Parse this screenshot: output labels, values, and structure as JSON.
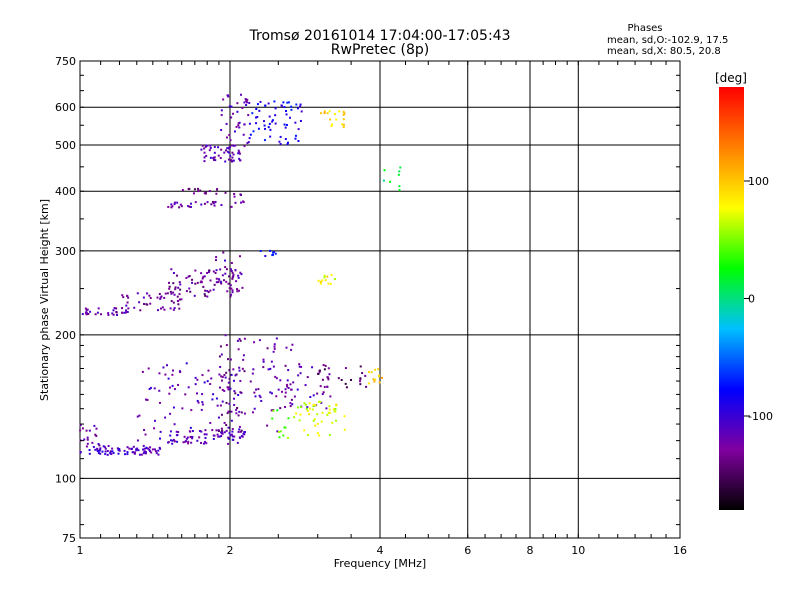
{
  "chart_data": {
    "type": "scatter",
    "title": "Tromsø 20161014 17:04:00-17:05:43",
    "subtitle": "RwPretec (8p)",
    "xlabel": "Frequency [MHz]",
    "ylabel": "Stationary phase Virtual Height [km]",
    "x_scale": "log",
    "y_scale": "log",
    "xlim": [
      1,
      16
    ],
    "ylim": [
      75,
      750
    ],
    "x_ticks": [
      1,
      2,
      4,
      6,
      8,
      10,
      16
    ],
    "y_ticks": [
      75,
      100,
      200,
      300,
      400,
      500,
      600,
      750
    ],
    "x_gridlines": [
      2,
      4,
      6,
      8,
      10
    ],
    "y_gridlines": [
      100,
      200,
      300,
      400,
      500,
      600
    ],
    "legend": {
      "title": "Phases",
      "line1": "mean, sd,O:-102.9, 17.5",
      "line2": "mean, sd,X:  80.5, 20.8"
    },
    "colorbar": {
      "label": "[deg]",
      "ticks": [
        100,
        0,
        -100
      ],
      "range": [
        -180,
        180
      ],
      "colors": [
        "#000000",
        "#8000a0",
        "#0000ff",
        "#00c0ff",
        "#00ff00",
        "#ffff00",
        "#ff8000",
        "#ff0000"
      ]
    },
    "series": [
      {
        "clusters": [
          {
            "x": [
              1.0,
              1.45
            ],
            "y": [
              112,
              117
            ],
            "phase": -110,
            "n": 80
          },
          {
            "x": [
              1.5,
              2.15
            ],
            "y": [
              118,
              127
            ],
            "phase": -115,
            "n": 70
          },
          {
            "x": [
              1.0,
              1.1
            ],
            "y": [
              115,
              130
            ],
            "phase": -120,
            "n": 18
          },
          {
            "x": [
              1.3,
              2.1
            ],
            "y": [
              120,
              175
            ],
            "phase": -115,
            "n": 90
          },
          {
            "x": [
              1.9,
              2.15
            ],
            "y": [
              125,
              200
            ],
            "phase": -130,
            "n": 60
          },
          {
            "x": [
              2.2,
              2.7
            ],
            "y": [
              125,
              200
            ],
            "phase": -120,
            "n": 55
          },
          {
            "x": [
              2.6,
              3.2
            ],
            "y": [
              140,
              175
            ],
            "phase": -120,
            "n": 35
          },
          {
            "x": [
              3.0,
              3.8
            ],
            "y": [
              155,
              172
            ],
            "phase": -140,
            "n": 25
          },
          {
            "x": [
              2.4,
              2.7
            ],
            "y": [
              120,
              140
            ],
            "phase": 40,
            "n": 12
          },
          {
            "x": [
              2.7,
              3.4
            ],
            "y": [
              123,
              145
            ],
            "phase": 70,
            "n": 45
          },
          {
            "x": [
              3.8,
              4.1
            ],
            "y": [
              158,
              170
            ],
            "phase": 100,
            "n": 12
          },
          {
            "x": [
              1.0,
              1.25
            ],
            "y": [
              220,
              228
            ],
            "phase": -120,
            "n": 30
          },
          {
            "x": [
              1.2,
              1.6
            ],
            "y": [
              225,
              245
            ],
            "phase": -125,
            "n": 45
          },
          {
            "x": [
              1.5,
              2.1
            ],
            "y": [
              240,
              275
            ],
            "phase": -130,
            "n": 80
          },
          {
            "x": [
              1.85,
              2.15
            ],
            "y": [
              245,
              300
            ],
            "phase": -120,
            "n": 25
          },
          {
            "x": [
              2.3,
              2.5
            ],
            "y": [
              290,
              300
            ],
            "phase": -80,
            "n": 8
          },
          {
            "x": [
              3.0,
              3.25
            ],
            "y": [
              255,
              268
            ],
            "phase": 80,
            "n": 12
          },
          {
            "x": [
              1.5,
              2.0
            ],
            "y": [
              370,
              380
            ],
            "phase": -125,
            "n": 25
          },
          {
            "x": [
              1.6,
              1.9
            ],
            "y": [
              395,
              405
            ],
            "phase": -140,
            "n": 15
          },
          {
            "x": [
              1.95,
              2.15
            ],
            "y": [
              370,
              400
            ],
            "phase": -120,
            "n": 10
          },
          {
            "x": [
              1.75,
              2.1
            ],
            "y": [
              460,
              500
            ],
            "phase": -120,
            "n": 50
          },
          {
            "x": [
              1.9,
              2.2
            ],
            "y": [
              480,
              640
            ],
            "phase": -115,
            "n": 45
          },
          {
            "x": [
              2.2,
              2.8
            ],
            "y": [
              500,
              620
            ],
            "phase": -85,
            "n": 60
          },
          {
            "x": [
              3.0,
              3.4
            ],
            "y": [
              540,
              590
            ],
            "phase": 95,
            "n": 18
          },
          {
            "x": [
              4.0,
              4.6
            ],
            "y": [
              400,
              450
            ],
            "phase": 10,
            "n": 8
          }
        ]
      }
    ]
  }
}
